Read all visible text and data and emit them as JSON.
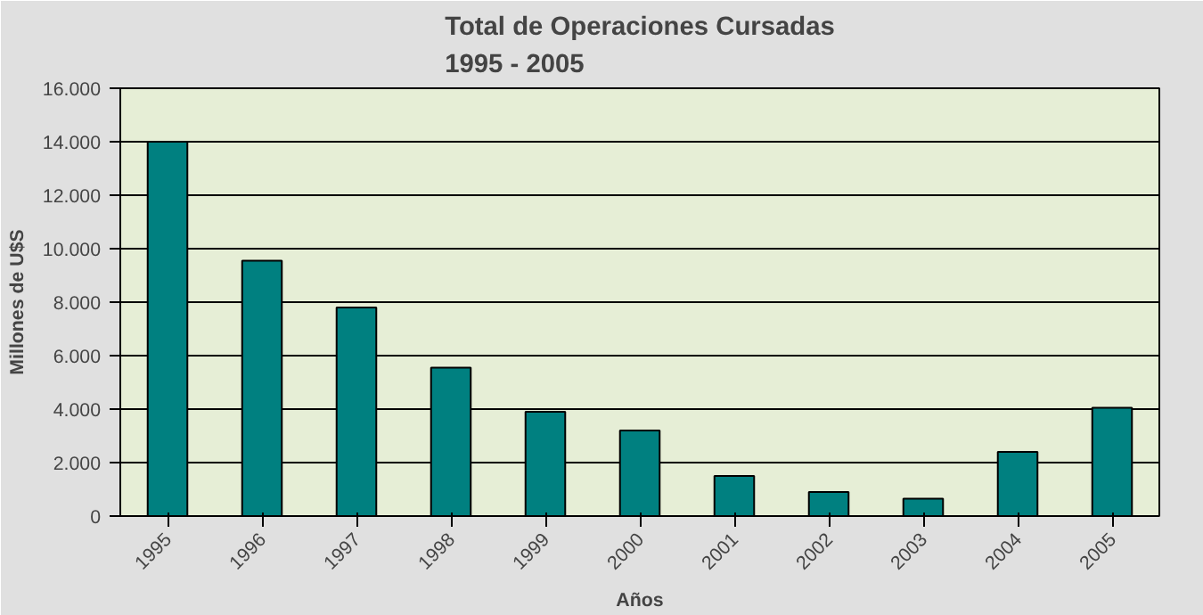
{
  "chart_data": {
    "type": "bar",
    "title": "Total de Operaciones Cursadas\n1995 - 2005",
    "xlabel": "Años",
    "ylabel": "Millones de U$S",
    "categories": [
      "1995",
      "1996",
      "1997",
      "1998",
      "1999",
      "2000",
      "2001",
      "2002",
      "2003",
      "2004",
      "2005"
    ],
    "values": [
      14000,
      9550,
      7800,
      5550,
      3900,
      3200,
      1500,
      900,
      650,
      2400,
      4050
    ],
    "color": "#008080",
    "ylim": [
      0,
      16000
    ],
    "yticks": [
      0,
      {
        "value": 2000,
        "label": "2.000"
      },
      {
        "value": 4000,
        "label": "4.000"
      },
      {
        "value": 6000,
        "label": "6.000"
      },
      {
        "value": 8000,
        "label": "8.000"
      },
      {
        "value": 10000,
        "label": "10.000"
      },
      {
        "value": 12000,
        "label": "12.000"
      },
      {
        "value": 14000,
        "label": "14.000"
      },
      {
        "value": 16000,
        "label": "16.000"
      }
    ],
    "grid": "y"
  }
}
